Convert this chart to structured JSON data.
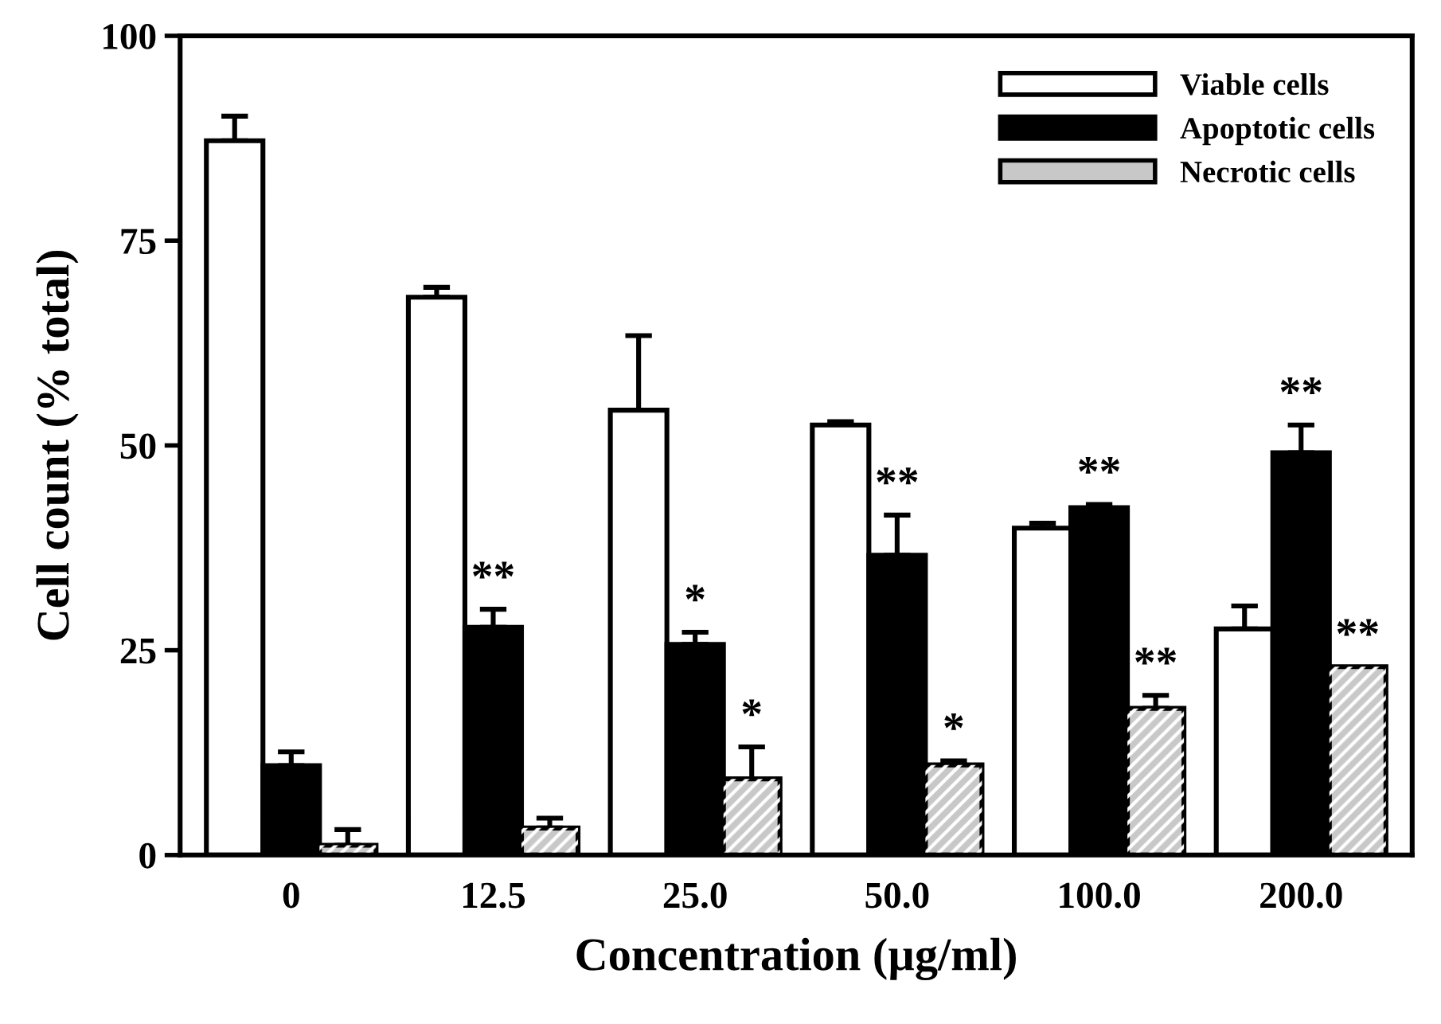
{
  "chart_data": {
    "type": "bar",
    "xlabel": "Concentration (µg/ml)",
    "ylabel": "Cell count (% total)",
    "categories": [
      "0",
      "12.5",
      "25.0",
      "50.0",
      "100.0",
      "200.0"
    ],
    "series": [
      {
        "name": "Viable cells",
        "color": "#ffffff",
        "values": [
          87.2,
          68.1,
          54.3,
          52.5,
          39.9,
          27.6
        ],
        "errors": [
          3.0,
          1.2,
          9.1,
          0.4,
          0.6,
          2.8
        ]
      },
      {
        "name": "Apoptotic cells",
        "color": "#000000",
        "values": [
          10.9,
          27.8,
          25.7,
          36.6,
          42.4,
          49.1
        ],
        "errors": [
          1.7,
          2.2,
          1.5,
          4.9,
          0.4,
          3.4
        ],
        "value_labels": [
          null,
          "**",
          "*",
          "**",
          "**",
          "**"
        ]
      },
      {
        "name": "Necrotic cells",
        "color": "#c8c8c8",
        "values": [
          1.2,
          3.3,
          9.3,
          11.0,
          17.9,
          23.0
        ],
        "errors": [
          1.9,
          1.2,
          3.9,
          0.5,
          1.6,
          null
        ],
        "value_labels": [
          null,
          null,
          "*",
          "*",
          "**",
          "**"
        ]
      }
    ],
    "ylim": [
      0,
      100
    ],
    "yticks": [
      0,
      25,
      50,
      75,
      100
    ],
    "grid": false,
    "legend": "top right"
  }
}
